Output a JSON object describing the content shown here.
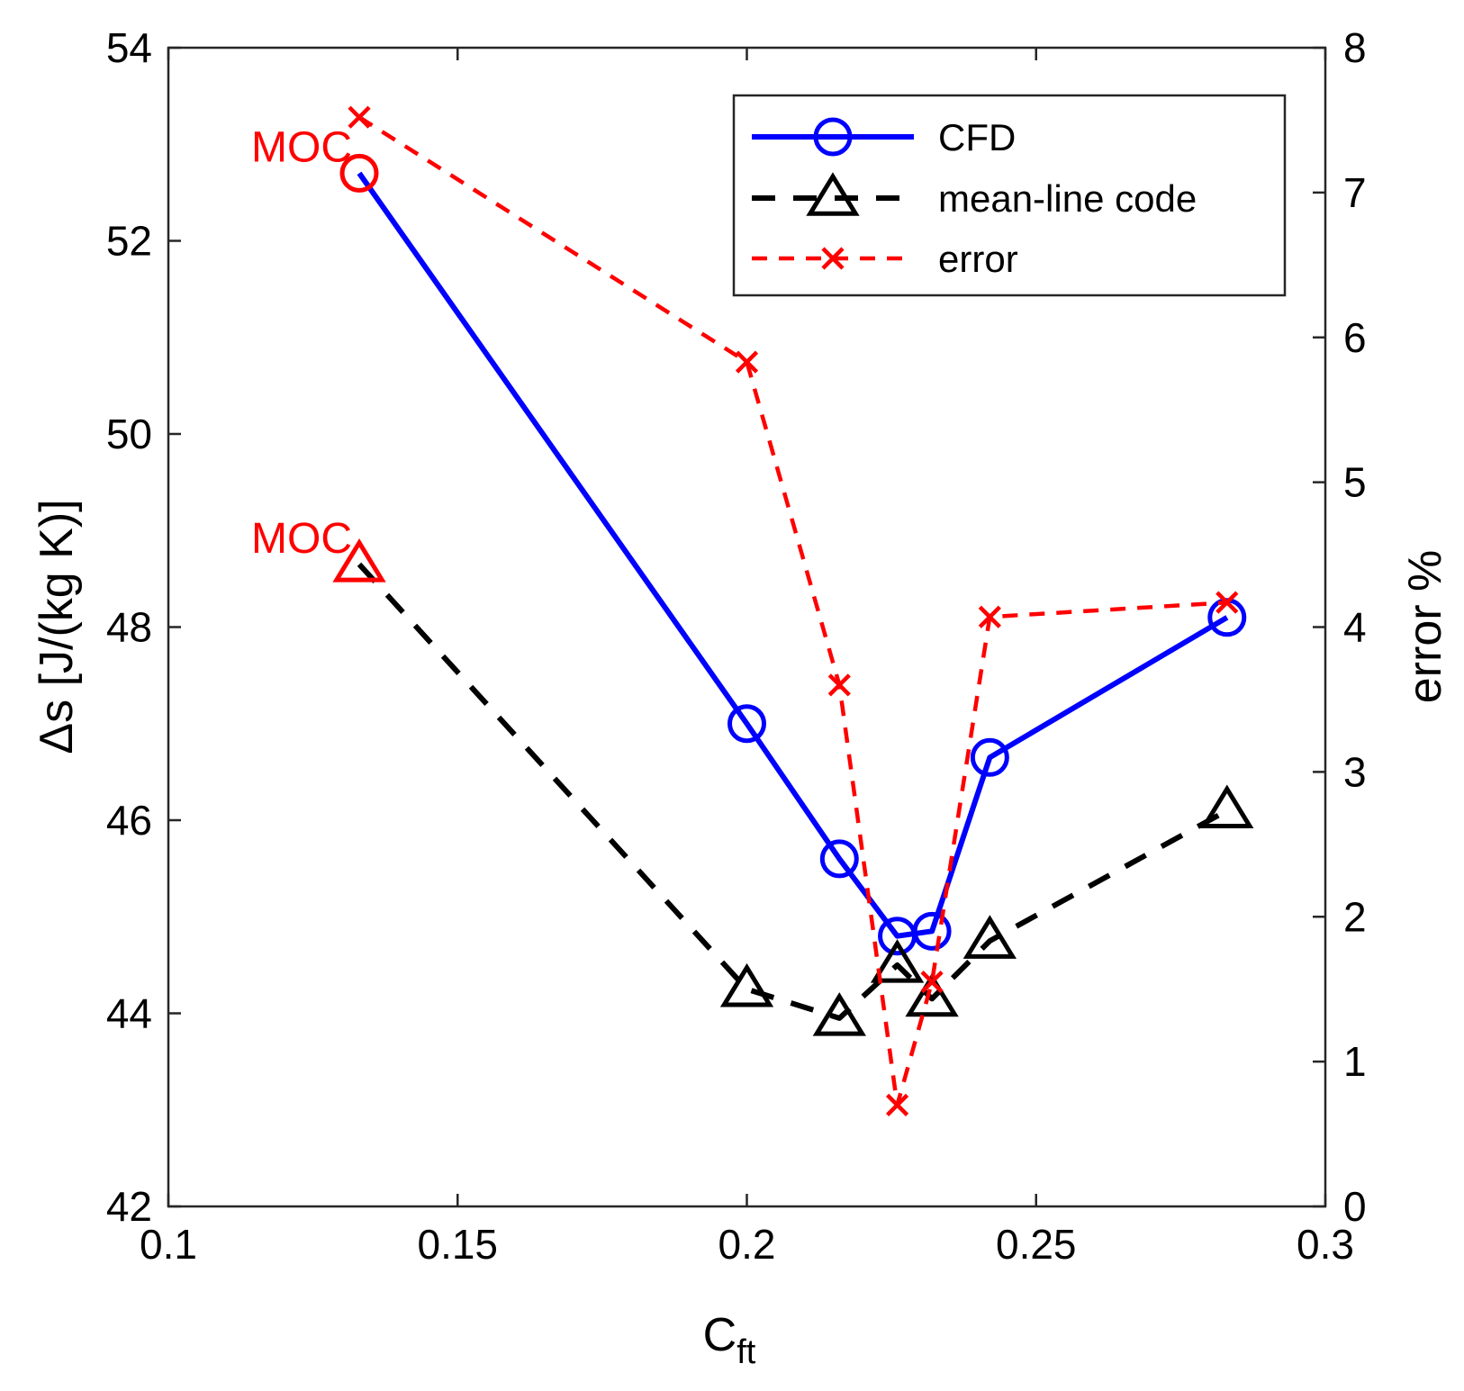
{
  "chart_data": {
    "type": "line",
    "title": "",
    "xlabel": "C",
    "xlabel_subscript": "ft",
    "ylabel": "Δs [J/(kg K)]",
    "y2label": "error %",
    "xlim": [
      0.1,
      0.3
    ],
    "ylim": [
      42,
      54
    ],
    "y2lim": [
      0,
      8
    ],
    "xticks": [
      0.1,
      0.15,
      0.2,
      0.25,
      0.3
    ],
    "xtick_labels": [
      "0.1",
      "0.15",
      "0.2",
      "0.25",
      "0.3"
    ],
    "yticks": [
      42,
      44,
      46,
      48,
      50,
      52,
      54
    ],
    "ytick_labels": [
      "42",
      "44",
      "46",
      "48",
      "50",
      "52",
      "54"
    ],
    "y2ticks": [
      0,
      1,
      2,
      3,
      4,
      5,
      6,
      7,
      8
    ],
    "y2tick_labels": [
      "0",
      "1",
      "2",
      "3",
      "4",
      "5",
      "6",
      "7",
      "8"
    ],
    "grid": false,
    "legend_position": "top-right",
    "series": [
      {
        "name": "CFD",
        "axis": "left",
        "color": "#0000ff",
        "line": "solid",
        "marker": "circle",
        "x": [
          0.133,
          0.2,
          0.216,
          0.226,
          0.232,
          0.242,
          0.283
        ],
        "y": [
          52.7,
          47.0,
          45.6,
          44.8,
          44.85,
          46.65,
          48.1
        ]
      },
      {
        "name": "mean-line code",
        "axis": "left",
        "color": "#000000",
        "line": "dashed",
        "marker": "triangle",
        "x": [
          0.133,
          0.2,
          0.216,
          0.226,
          0.232,
          0.242,
          0.283
        ],
        "y": [
          48.65,
          44.25,
          43.95,
          44.5,
          44.15,
          44.75,
          46.1
        ]
      },
      {
        "name": "error",
        "axis": "right",
        "color": "#ff0000",
        "line": "dashed",
        "marker": "x",
        "x": [
          0.133,
          0.2,
          0.216,
          0.226,
          0.232,
          0.242,
          0.283
        ],
        "y": [
          7.52,
          5.83,
          3.6,
          0.7,
          1.55,
          4.07,
          4.17
        ]
      }
    ],
    "annotations": [
      {
        "text": "MOC",
        "color": "#ff0000",
        "x": 0.133,
        "y": 52.7,
        "axis": "left",
        "anchor": "left-of-point"
      },
      {
        "text": "MOC",
        "color": "#ff0000",
        "x": 0.133,
        "y": 48.65,
        "axis": "left",
        "anchor": "left-of-point"
      }
    ]
  }
}
